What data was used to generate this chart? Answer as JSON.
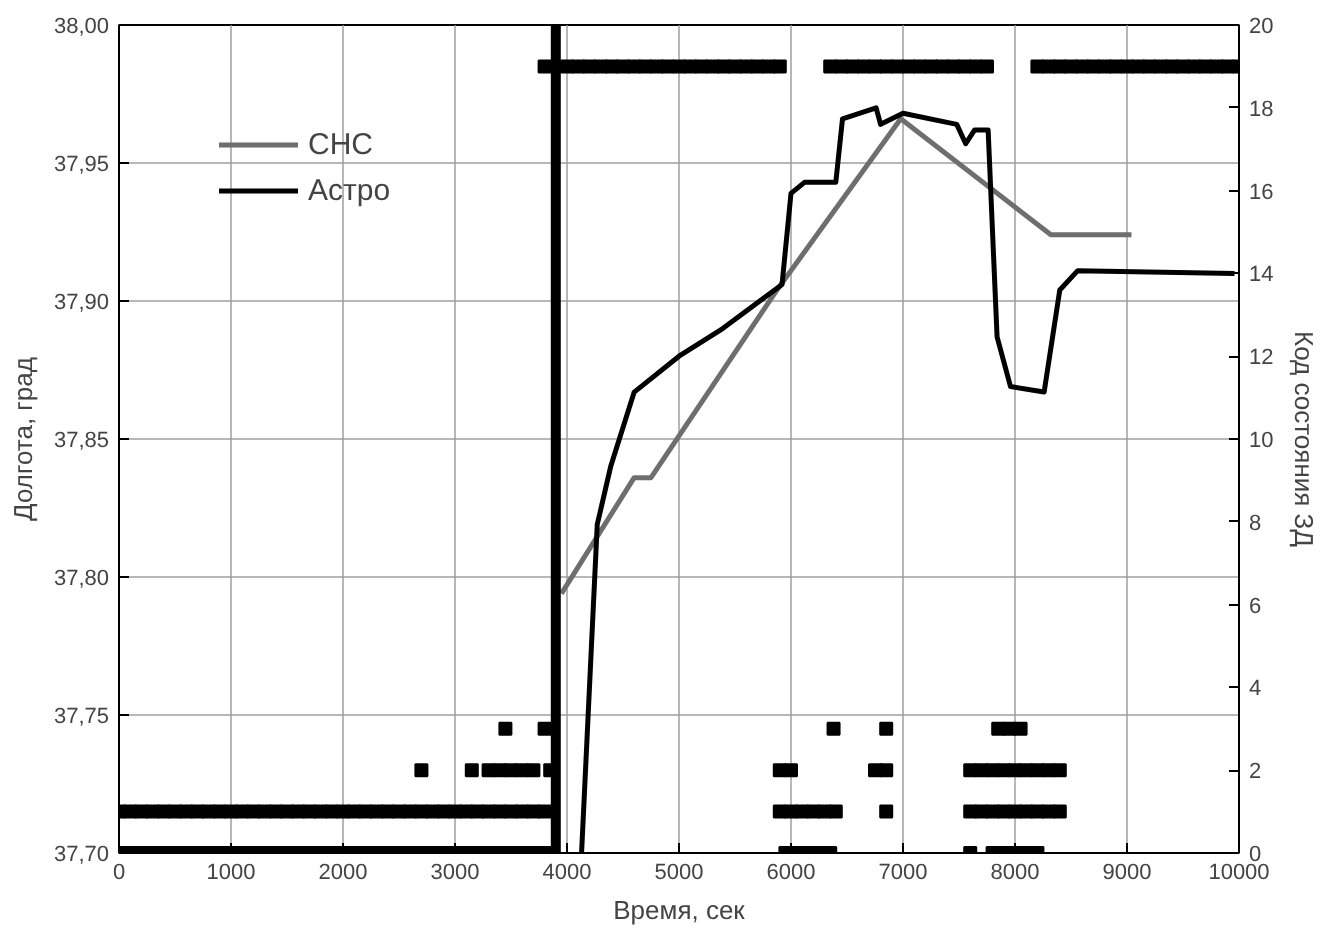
{
  "chart_data": {
    "type": "line",
    "xlabel": "Время, сек",
    "ylabel": "Долгота, град",
    "y2label": "Код состояния ЗД",
    "xlim": [
      0,
      10000
    ],
    "xticks": [
      0,
      1000,
      2000,
      3000,
      4000,
      5000,
      6000,
      7000,
      8000,
      9000,
      10000
    ],
    "ylim": [
      37.7,
      38.0
    ],
    "yticks": [
      {
        "value": 37.7,
        "label": "37,70"
      },
      {
        "value": 37.75,
        "label": "37,75"
      },
      {
        "value": 37.8,
        "label": "37,80"
      },
      {
        "value": 37.85,
        "label": "37,85"
      },
      {
        "value": 37.9,
        "label": "37,90"
      },
      {
        "value": 37.95,
        "label": "37,95"
      },
      {
        "value": 38.0,
        "label": "38,00"
      }
    ],
    "y2lim": [
      0,
      20
    ],
    "y2ticks": [
      0,
      2,
      4,
      6,
      8,
      10,
      12,
      14,
      16,
      18,
      20
    ],
    "grid": true,
    "legend": "top left",
    "line_style": "solid",
    "ref_lines": [
      {
        "axis": "x",
        "value": 3900,
        "color": "#000000"
      }
    ],
    "series": [
      {
        "name": "СНС",
        "color": "#6e6e6e",
        "x": [
          3950,
          4600,
          4750,
          5875,
          6980,
          8320,
          9040
        ],
        "values": [
          37.794,
          37.836,
          37.836,
          37.904,
          37.966,
          37.924,
          37.924
        ]
      },
      {
        "name": "Астро",
        "color": "#000000",
        "x": [
          4130,
          4270,
          4390,
          4600,
          5000,
          5390,
          5920,
          6000,
          6120,
          6400,
          6460,
          6760,
          6800,
          7000,
          7480,
          7560,
          7640,
          7760,
          7840,
          7960,
          8260,
          8400,
          8560,
          9960
        ],
        "values": [
          37.7,
          37.819,
          37.84,
          37.867,
          37.88,
          37.89,
          37.906,
          37.939,
          37.943,
          37.943,
          37.966,
          37.97,
          37.964,
          37.968,
          37.964,
          37.957,
          37.962,
          37.962,
          37.887,
          37.869,
          37.867,
          37.904,
          37.911,
          37.91
        ]
      },
      {
        "type": "scatter",
        "marker": "square",
        "color": "#000000",
        "axis": "y2",
        "x": [
          0,
          100,
          200,
          300,
          400,
          500,
          600,
          700,
          800,
          900,
          1000,
          1100,
          1200,
          1300,
          1400,
          1500,
          1600,
          1700,
          1800,
          1900,
          2000,
          2100,
          2200,
          2300,
          2400,
          2500,
          2600,
          2700,
          2800,
          2900,
          3000,
          3100,
          3200,
          3300,
          3400,
          3500,
          3600,
          3700,
          3800,
          5950,
          6050,
          6150,
          6250,
          6350,
          7600,
          7800,
          7900,
          8000,
          8100,
          8200
        ],
        "values": [
          0,
          0,
          0,
          0,
          0,
          0,
          0,
          0,
          0,
          0,
          0,
          0,
          0,
          0,
          0,
          0,
          0,
          0,
          0,
          0,
          0,
          0,
          0,
          0,
          0,
          0,
          0,
          0,
          0,
          0,
          0,
          0,
          0,
          0,
          0,
          0,
          0,
          0,
          0,
          0,
          0,
          0,
          0,
          0,
          0,
          0,
          0,
          0,
          0,
          0
        ]
      },
      {
        "type": "scatter",
        "marker": "square",
        "color": "#000000",
        "axis": "y2",
        "x": [
          0,
          100,
          200,
          300,
          400,
          500,
          600,
          700,
          800,
          900,
          1000,
          1100,
          1200,
          1300,
          1400,
          1500,
          1600,
          1700,
          1800,
          1900,
          2000,
          2100,
          2200,
          2300,
          2400,
          2500,
          2600,
          2700,
          2800,
          2900,
          3000,
          3100,
          3200,
          3300,
          3400,
          3500,
          3600,
          3700,
          3800,
          5900,
          6000,
          6100,
          6200,
          6300,
          6400,
          6850,
          7600,
          7700,
          7800,
          7900,
          8000,
          8100,
          8200,
          8300,
          8400
        ],
        "values": [
          1,
          1,
          1,
          1,
          1,
          1,
          1,
          1,
          1,
          1,
          1,
          1,
          1,
          1,
          1,
          1,
          1,
          1,
          1,
          1,
          1,
          1,
          1,
          1,
          1,
          1,
          1,
          1,
          1,
          1,
          1,
          1,
          1,
          1,
          1,
          1,
          1,
          1,
          1,
          1,
          1,
          1,
          1,
          1,
          1,
          1,
          1,
          1,
          1,
          1,
          1,
          1,
          1,
          1,
          1
        ]
      },
      {
        "type": "scatter",
        "marker": "square",
        "color": "#000000",
        "axis": "y2",
        "x": [
          2700,
          3150,
          3300,
          3400,
          3500,
          3600,
          3700,
          3850,
          5900,
          6000,
          6750,
          6850,
          7600,
          7700,
          7800,
          7900,
          8000,
          8100,
          8200,
          8300,
          8400
        ],
        "values": [
          2,
          2,
          2,
          2,
          2,
          2,
          2,
          2,
          2,
          2,
          2,
          2,
          2,
          2,
          2,
          2,
          2,
          2,
          2,
          2,
          2
        ]
      },
      {
        "type": "scatter",
        "marker": "square",
        "color": "#000000",
        "axis": "y2",
        "x": [
          3450,
          3800,
          6380,
          6850,
          7850,
          7950,
          8050
        ],
        "values": [
          3,
          3,
          3,
          3,
          3,
          3,
          3
        ]
      },
      {
        "type": "scatter",
        "marker": "square",
        "color": "#000000",
        "axis": "y2",
        "x": [
          3800,
          4000,
          4100,
          4200,
          4300,
          4400,
          4500,
          4600,
          4700,
          4800,
          4900,
          5000,
          5100,
          5200,
          5300,
          5400,
          5500,
          5600,
          5700,
          5800,
          5900,
          6350,
          6450,
          6550,
          6650,
          6750,
          6850,
          6950,
          7050,
          7150,
          7250,
          7350,
          7450,
          7550,
          7650,
          7750,
          8200,
          8300,
          8400,
          8500,
          8600,
          8700,
          8800,
          8900,
          9000,
          9100,
          9200,
          9300,
          9400,
          9500,
          9600,
          9700,
          9800,
          9900,
          10000
        ],
        "values": [
          19,
          19,
          19,
          19,
          19,
          19,
          19,
          19,
          19,
          19,
          19,
          19,
          19,
          19,
          19,
          19,
          19,
          19,
          19,
          19,
          19,
          19,
          19,
          19,
          19,
          19,
          19,
          19,
          19,
          19,
          19,
          19,
          19,
          19,
          19,
          19,
          19,
          19,
          19,
          19,
          19,
          19,
          19,
          19,
          19,
          19,
          19,
          19,
          19,
          19,
          19,
          19,
          19,
          19,
          19
        ]
      }
    ]
  }
}
